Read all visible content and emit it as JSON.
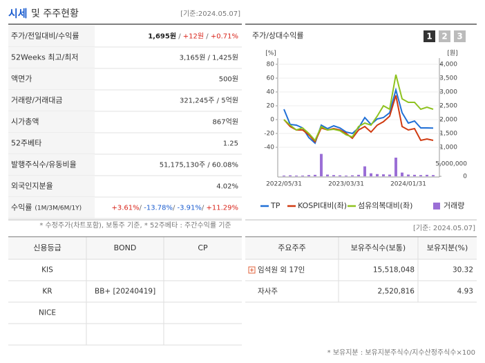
{
  "header": {
    "title_highlight": "시세",
    "title_rest": "및 주주현황",
    "date": "[기준:2024.05.07]"
  },
  "price_table": {
    "rows": [
      {
        "label": "주가/전일대비/수익률",
        "parts": [
          {
            "text": "1,695원",
            "color": "#222222",
            "bold": true
          },
          {
            "text": " / ",
            "color": "#666666"
          },
          {
            "text": "+12원",
            "color": "#d9261c"
          },
          {
            "text": " / ",
            "color": "#666666"
          },
          {
            "text": "+0.71%",
            "color": "#d9261c"
          }
        ]
      },
      {
        "label": "52Weeks 최고/최저",
        "parts": [
          {
            "text": "3,165원 / 1,425원",
            "color": "#333333"
          }
        ]
      },
      {
        "label": "액면가",
        "parts": [
          {
            "text": "500원",
            "color": "#333333"
          }
        ]
      },
      {
        "label": "거래량/거래대금",
        "parts": [
          {
            "text": "321,245주 / 5억원",
            "color": "#333333"
          }
        ]
      },
      {
        "label": "시가총액",
        "parts": [
          {
            "text": "867억원",
            "color": "#333333"
          }
        ]
      },
      {
        "label": "52주베타",
        "parts": [
          {
            "text": "1.25",
            "color": "#333333"
          }
        ]
      },
      {
        "label": "발행주식수/유동비율",
        "parts": [
          {
            "text": "51,175,130주 / 60.08%",
            "color": "#333333"
          }
        ]
      },
      {
        "label": "외국인지분율",
        "parts": [
          {
            "text": "4.02%",
            "color": "#333333"
          }
        ]
      },
      {
        "label": "수익률",
        "label_note": "(1M/3M/6M/1Y)",
        "parts": [
          {
            "text": "+3.61%",
            "color": "#d9261c"
          },
          {
            "text": "/ ",
            "color": "#666666"
          },
          {
            "text": "-13.78%",
            "color": "#1a5ccf"
          },
          {
            "text": "/ ",
            "color": "#666666"
          },
          {
            "text": "-3.91%",
            "color": "#1a5ccf"
          },
          {
            "text": "/ ",
            "color": "#666666"
          },
          {
            "text": "+11.29%",
            "color": "#d9261c"
          }
        ]
      }
    ],
    "footnote": "* 수정주가(차트포함), 보통주 기준, * 52주베타 : 주간수익률 기준"
  },
  "chart_data": {
    "type": "line",
    "title": "주가/상대수익률",
    "buttons": [
      "1",
      "2",
      "3"
    ],
    "y_label": "[%]",
    "y2_label": "[원]",
    "categories": [
      "2022/05/31",
      null,
      null,
      null,
      null,
      null,
      null,
      null,
      null,
      null,
      "2023/03/31",
      null,
      null,
      null,
      null,
      null,
      null,
      null,
      null,
      null,
      "2024/01/31",
      null,
      null,
      null,
      null
    ],
    "series": [
      {
        "name": "TP",
        "color": "#1f6fd6",
        "axis": "y2",
        "values": [
          2375,
          1825,
          1800,
          1700,
          1350,
          1150,
          1800,
          1675,
          1775,
          1700,
          1550,
          1500,
          1700,
          2075,
          1825,
          2025,
          2075,
          2250,
          3075,
          2250,
          1875,
          1950,
          1700,
          1700,
          1695
        ]
      },
      {
        "name": "KOSPI대비(좌)",
        "color": "#d03a10",
        "values": [
          0,
          -10,
          -15,
          -15,
          -22,
          -32,
          -12,
          -15,
          -13,
          -15,
          -20,
          -27,
          -15,
          -10,
          -18,
          -8,
          -3,
          5,
          35,
          -10,
          -15,
          -13,
          -30,
          -28,
          -30
        ]
      },
      {
        "name": "섬유의복대비(좌)",
        "color": "#8ec21f",
        "values": [
          0,
          -8,
          -15,
          -12,
          -20,
          -30,
          -10,
          -15,
          -14,
          -16,
          -22,
          -25,
          -10,
          -5,
          -8,
          5,
          20,
          15,
          65,
          30,
          25,
          25,
          15,
          18,
          15
        ]
      },
      {
        "name": "거래량",
        "color": "#9b6fd6",
        "type": "bar",
        "axis": "y3",
        "values": [
          300000,
          400000,
          300000,
          300000,
          500000,
          600000,
          9000000,
          700000,
          500000,
          400000,
          300000,
          400000,
          600000,
          4000000,
          1200000,
          900000,
          800000,
          700000,
          7500000,
          1500000,
          700000,
          600000,
          500000,
          600000,
          500000
        ]
      }
    ],
    "ylim": [
      -40,
      80
    ],
    "yticks": [
      -40,
      -20,
      0,
      20,
      40,
      60,
      80
    ],
    "y2lim": [
      1000,
      4000
    ],
    "y2ticks": [
      {
        "value": 1000,
        "label": "1,000"
      },
      {
        "value": 1500,
        "label": "1,500"
      },
      {
        "value": 2000,
        "label": "2,000"
      },
      {
        "value": 2500,
        "label": "2,500"
      },
      {
        "value": 3000,
        "label": "3,000"
      },
      {
        "value": 3500,
        "label": "3,500"
      },
      {
        "value": 4000,
        "label": "4,000"
      }
    ],
    "y3lim": [
      0,
      10000000
    ],
    "y3ticks": [
      0,
      {
        "value": 5000000,
        "label": "5,000,000"
      }
    ]
  },
  "credit_table": {
    "headers": [
      "신용등급",
      "BOND",
      "CP"
    ],
    "rows": [
      [
        "KIS"
      ],
      [
        "KR",
        "BB+ [20240419]"
      ],
      [
        "NICE"
      ]
    ]
  },
  "holder_table": {
    "date": "[기준: 2024.05.07]",
    "headers": [
      "주요주주",
      "보유주식수(보통)",
      "보유지분(%)"
    ],
    "rows": [
      [
        "임석원 외 17인",
        "15,518,048",
        "30.32"
      ],
      [
        "자사주",
        "2,520,816",
        "4.93"
      ]
    ],
    "footnote": "* 보유지분 : 보유지분주식수/지수산정주식수×100"
  }
}
